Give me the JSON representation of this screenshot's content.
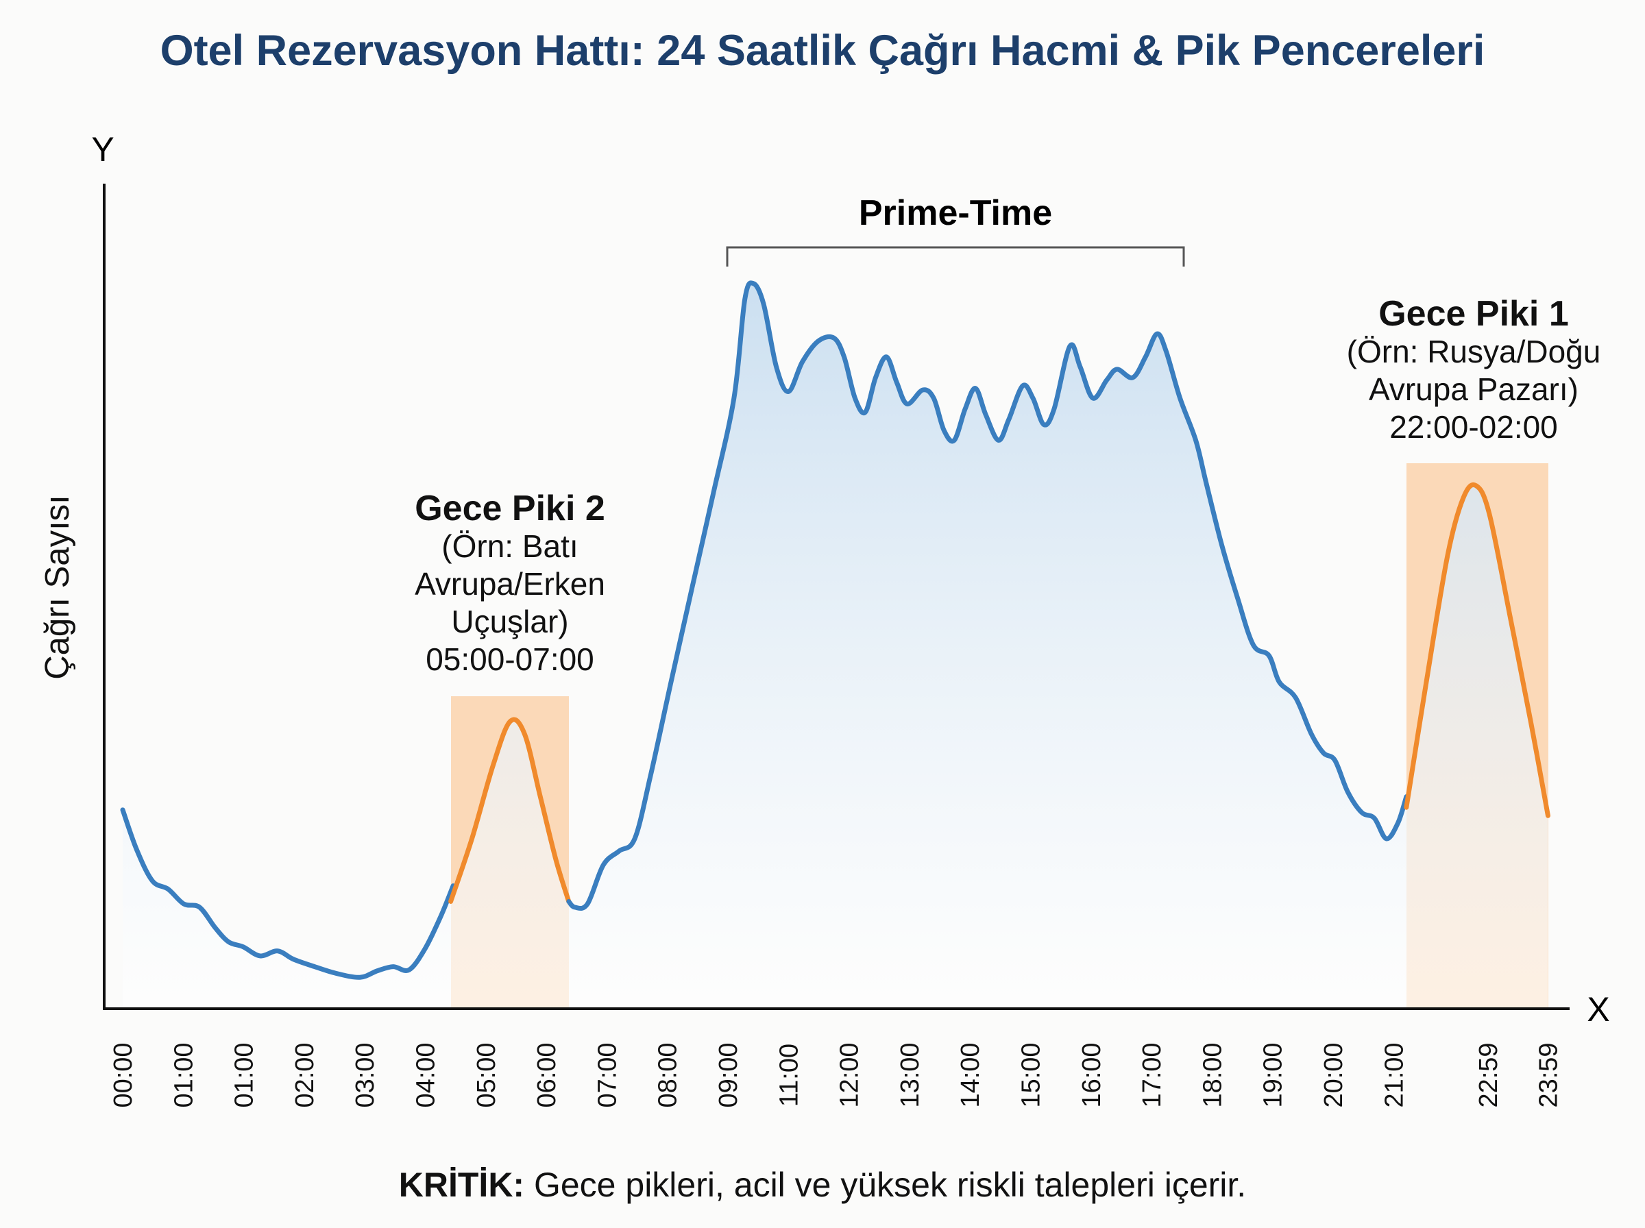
{
  "chart_data": {
    "type": "area",
    "title": "Otel Rezervasyon Hattı: 24 Saatlik Çağrı Hacmi & Pik Pencereleri",
    "xlabel": "X",
    "ylabel": "Çağrı Sayısı",
    "y_axis_letter": "Y",
    "x_axis_letter": "X",
    "x_tick_labels": [
      "00:00",
      "01:00",
      "01:00",
      "02:00",
      "03:00",
      "04:00",
      "05:00",
      "06:00",
      "07:00",
      "08:00",
      "09:00",
      "11:00",
      "12:00",
      "13:00",
      "14:00",
      "15:00",
      "16:00",
      "17:00",
      "18:00",
      "19:00",
      "20:00",
      "21:00",
      "22:59",
      "23:59"
    ],
    "x_units": "tick-slot index (0 = first tick label)",
    "x_tick_positions": [
      0,
      1,
      2,
      3,
      4,
      5,
      6,
      7,
      8,
      9,
      10,
      11,
      12,
      13,
      14,
      15,
      16,
      17,
      18,
      19,
      20,
      21,
      22.56,
      23.55
    ],
    "y_units": "relative call volume (no ticks printed)",
    "ylim": [
      0,
      100
    ],
    "grid": false,
    "colors": {
      "base": "#3a7ebf",
      "peak": "#f08a2c",
      "band": "#fbd9b8",
      "fill_top": "#c9def0",
      "title": "#1d3f6b"
    },
    "series": [
      {
        "role": "base",
        "points": [
          [
            0,
            24.1
          ],
          [
            0.23,
            19.3
          ],
          [
            0.49,
            15.5
          ],
          [
            0.75,
            14.5
          ],
          [
            1.01,
            12.7
          ],
          [
            1.27,
            12.3
          ],
          [
            1.53,
            9.8
          ],
          [
            1.75,
            8.1
          ],
          [
            1.99,
            7.5
          ],
          [
            2.27,
            6.4
          ],
          [
            2.56,
            7.0
          ],
          [
            2.82,
            6.0
          ],
          [
            3.17,
            5.1
          ],
          [
            3.52,
            4.3
          ],
          [
            3.92,
            3.8
          ],
          [
            4.21,
            4.6
          ],
          [
            4.47,
            5.1
          ],
          [
            4.73,
            4.7
          ],
          [
            4.99,
            7.2
          ],
          [
            5.25,
            11.1
          ],
          [
            5.46,
            14.9
          ]
        ]
      },
      {
        "role": "peak-2",
        "points": [
          [
            5.42,
            13.0
          ],
          [
            5.77,
            20.6
          ],
          [
            6.12,
            29.5
          ],
          [
            6.4,
            34.8
          ],
          [
            6.64,
            33.3
          ],
          [
            6.9,
            25.7
          ],
          [
            7.16,
            18.0
          ],
          [
            7.37,
            13.0
          ]
        ]
      },
      {
        "role": "base",
        "points": [
          [
            7.37,
            13.0
          ],
          [
            7.47,
            12.3
          ],
          [
            7.68,
            12.7
          ],
          [
            7.94,
            17.4
          ],
          [
            8.2,
            19.1
          ],
          [
            8.46,
            20.6
          ],
          [
            8.72,
            28.2
          ],
          [
            9.06,
            39.6
          ],
          [
            9.41,
            51.1
          ],
          [
            9.76,
            62.5
          ],
          [
            10.1,
            74.0
          ],
          [
            10.28,
            86.0
          ],
          [
            10.42,
            87.9
          ],
          [
            10.59,
            85.4
          ],
          [
            10.8,
            77.8
          ],
          [
            11.0,
            74.8
          ],
          [
            11.23,
            78.4
          ],
          [
            11.49,
            80.9
          ],
          [
            11.75,
            81.3
          ],
          [
            11.92,
            79.0
          ],
          [
            12.1,
            74.0
          ],
          [
            12.27,
            72.3
          ],
          [
            12.44,
            76.5
          ],
          [
            12.62,
            79.0
          ],
          [
            12.79,
            75.9
          ],
          [
            12.96,
            73.3
          ],
          [
            13.22,
            75.0
          ],
          [
            13.4,
            74.0
          ],
          [
            13.57,
            70.1
          ],
          [
            13.74,
            68.9
          ],
          [
            13.92,
            72.7
          ],
          [
            14.09,
            75.2
          ],
          [
            14.26,
            72.0
          ],
          [
            14.47,
            68.9
          ],
          [
            14.64,
            71.4
          ],
          [
            14.87,
            75.5
          ],
          [
            15.04,
            74.0
          ],
          [
            15.22,
            70.8
          ],
          [
            15.39,
            72.7
          ],
          [
            15.65,
            80.3
          ],
          [
            15.82,
            77.8
          ],
          [
            16.03,
            74.0
          ],
          [
            16.26,
            76.2
          ],
          [
            16.43,
            77.5
          ],
          [
            16.69,
            76.5
          ],
          [
            16.9,
            79.0
          ],
          [
            17.09,
            81.8
          ],
          [
            17.24,
            79.7
          ],
          [
            17.47,
            74.0
          ],
          [
            17.73,
            68.9
          ],
          [
            17.9,
            63.8
          ],
          [
            18.16,
            56.2
          ],
          [
            18.42,
            49.8
          ],
          [
            18.68,
            44.1
          ],
          [
            18.94,
            42.8
          ],
          [
            19.11,
            39.6
          ],
          [
            19.38,
            37.7
          ],
          [
            19.64,
            33.3
          ],
          [
            19.84,
            31.0
          ],
          [
            20.03,
            30.1
          ],
          [
            20.24,
            26.3
          ],
          [
            20.47,
            23.8
          ],
          [
            20.68,
            23.1
          ],
          [
            20.88,
            20.6
          ],
          [
            21.07,
            22.5
          ],
          [
            21.21,
            25.7
          ]
        ]
      },
      {
        "role": "peak-1",
        "points": [
          [
            21.21,
            24.4
          ],
          [
            21.54,
            39.6
          ],
          [
            21.89,
            54.9
          ],
          [
            22.15,
            61.9
          ],
          [
            22.36,
            63.4
          ],
          [
            22.58,
            60.0
          ],
          [
            22.93,
            47.3
          ],
          [
            23.27,
            34.6
          ],
          [
            23.55,
            23.4
          ]
        ]
      }
    ],
    "bracket_label": "Prime-Time",
    "annotations": {
      "peak2": {
        "title": "Gece Piki 2",
        "lines": [
          "(Örn: Batı",
          "Avrupa/Erken",
          "Uçuşlar)",
          "05:00-07:00"
        ]
      },
      "peak1": {
        "title": "Gece Piki 1",
        "lines": [
          "(Örn: Rusya/Doğu",
          "Avrupa Pazarı)",
          "22:00-02:00"
        ]
      }
    }
  },
  "footer": {
    "bold": "KRİTİK:",
    "text": " Gece pikleri, acil ve yüksek riskli talepleri içerir."
  }
}
